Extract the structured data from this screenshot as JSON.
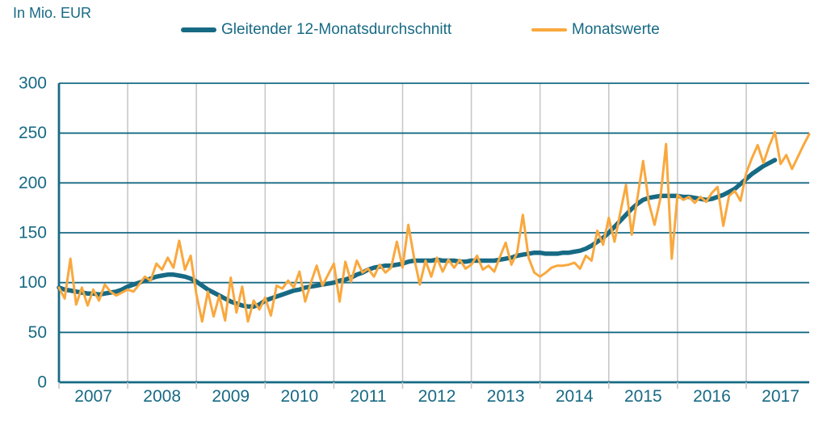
{
  "header": {
    "unit_label": "In Mio. EUR"
  },
  "colors": {
    "teal": "#176a84",
    "orange": "#f9a83e",
    "grid_gray": "#c8c8c8",
    "background": "#ffffff"
  },
  "chart_data": {
    "type": "line",
    "title": "In Mio. EUR",
    "x_start": "2007-01",
    "x_end": "2017-12",
    "x_unit": "month",
    "year_labels": [
      "2007",
      "2008",
      "2009",
      "2010",
      "2011",
      "2012",
      "2013",
      "2014",
      "2015",
      "2016",
      "2017"
    ],
    "ylim": [
      0,
      300
    ],
    "yticks": [
      0,
      50,
      100,
      150,
      200,
      250,
      300
    ],
    "grid": {
      "horizontal_lines": "teal",
      "vertical_year_lines": "light-gray"
    },
    "legend_position": "top",
    "series": [
      {
        "name": "Gleitender 12-Monatsdurchschnitt",
        "color": "#176a84",
        "stroke_width": 5.5,
        "values": [
          95,
          93,
          92,
          91,
          90,
          89,
          89,
          88,
          89,
          90,
          91,
          93,
          96,
          98,
          100,
          102,
          104,
          106,
          107,
          108,
          108,
          107,
          106,
          104,
          101,
          97,
          93,
          90,
          87,
          84,
          81,
          79,
          77,
          76,
          76,
          78,
          82,
          84,
          86,
          88,
          90,
          92,
          93,
          95,
          96,
          97,
          98,
          99,
          100,
          102,
          103,
          105,
          108,
          110,
          113,
          115,
          116,
          117,
          117,
          118,
          119,
          121,
          122,
          122,
          122,
          122,
          123,
          122,
          122,
          122,
          121,
          121,
          122,
          122,
          122,
          122,
          122,
          123,
          124,
          125,
          127,
          128,
          129,
          130,
          130,
          129,
          129,
          129,
          130,
          130,
          131,
          132,
          134,
          137,
          141,
          145,
          150,
          156,
          162,
          168,
          174,
          179,
          183,
          185,
          186,
          187,
          187,
          187,
          187,
          186,
          186,
          185,
          184,
          183,
          184,
          186,
          188,
          191,
          194,
          199,
          204,
          209,
          213,
          217,
          220,
          223
        ]
      },
      {
        "name": "Monatswerte",
        "color": "#f9a83e",
        "stroke_width": 3,
        "values": [
          95,
          84,
          124,
          78,
          95,
          77,
          93,
          82,
          98,
          91,
          87,
          90,
          93,
          91,
          98,
          106,
          102,
          119,
          113,
          125,
          115,
          142,
          113,
          127,
          88,
          61,
          91,
          66,
          87,
          62,
          105,
          70,
          96,
          61,
          82,
          73,
          85,
          67,
          97,
          94,
          102,
          95,
          111,
          81,
          100,
          117,
          97,
          108,
          119,
          81,
          121,
          101,
          122,
          110,
          114,
          106,
          118,
          110,
          115,
          141,
          115,
          158,
          125,
          98,
          122,
          106,
          125,
          111,
          123,
          115,
          123,
          114,
          118,
          127,
          113,
          117,
          111,
          126,
          140,
          118,
          130,
          168,
          125,
          110,
          106,
          110,
          115,
          117,
          117,
          118,
          120,
          114,
          127,
          122,
          152,
          138,
          165,
          141,
          170,
          198,
          148,
          185,
          222,
          180,
          158,
          184,
          239,
          124,
          188,
          183,
          186,
          180,
          186,
          181,
          190,
          196,
          157,
          187,
          192,
          182,
          210,
          225,
          238,
          220,
          237,
          251,
          219,
          228,
          214,
          226,
          238,
          249
        ]
      }
    ]
  }
}
